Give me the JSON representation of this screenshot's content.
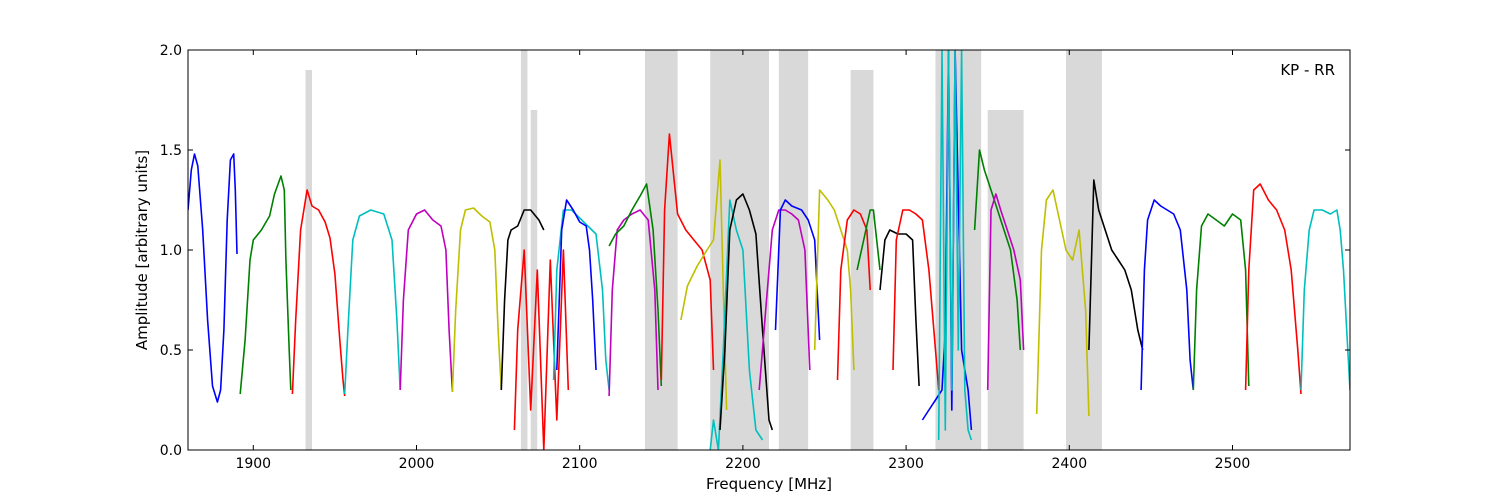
{
  "chart_data": {
    "type": "line",
    "annotation": "KP - RR",
    "xlabel": "Frequency [MHz]",
    "ylabel": "Amplitude [arbitrary units]",
    "xlim": [
      1860,
      2572
    ],
    "ylim": [
      0.0,
      2.0
    ],
    "xticks": [
      1900,
      2000,
      2100,
      2200,
      2300,
      2400,
      2500
    ],
    "yticks": [
      0.0,
      0.5,
      1.0,
      1.5,
      2.0
    ],
    "ytick_labels": [
      "0.0",
      "0.5",
      "1.0",
      "1.5",
      "2.0"
    ],
    "grid": false,
    "legend": "none",
    "background_series_color": "#c0c0c0",
    "series": [
      {
        "color": "#0000ff",
        "x": [
          1860,
          1862,
          1864,
          1866,
          1869,
          1872,
          1875,
          1878,
          1880,
          1882,
          1884,
          1886,
          1888,
          1889,
          1890
        ],
        "y": [
          1.2,
          1.4,
          1.48,
          1.42,
          1.1,
          0.65,
          0.32,
          0.24,
          0.3,
          0.6,
          1.15,
          1.45,
          1.48,
          1.3,
          0.98
        ]
      },
      {
        "color": "#008000",
        "x": [
          1892,
          1895,
          1898,
          1900,
          1905,
          1910,
          1913,
          1917,
          1919,
          1920,
          1922,
          1923
        ],
        "y": [
          0.28,
          0.55,
          0.95,
          1.05,
          1.1,
          1.17,
          1.28,
          1.37,
          1.3,
          0.95,
          0.5,
          0.3
        ]
      },
      {
        "color": "#ff0000",
        "x": [
          1924,
          1926,
          1929,
          1933,
          1936,
          1940,
          1944,
          1947,
          1950,
          1953,
          1955,
          1956
        ],
        "y": [
          0.28,
          0.65,
          1.1,
          1.3,
          1.22,
          1.2,
          1.14,
          1.06,
          0.88,
          0.55,
          0.35,
          0.27
        ]
      },
      {
        "color": "#00bfbf",
        "x": [
          1956,
          1958,
          1961,
          1965,
          1972,
          1980,
          1985,
          1988,
          1990
        ],
        "y": [
          0.28,
          0.6,
          1.05,
          1.17,
          1.2,
          1.18,
          1.05,
          0.65,
          0.3
        ]
      },
      {
        "color": "#bf00bf",
        "x": [
          1990,
          1992,
          1995,
          2000,
          2005,
          2010,
          2015,
          2018,
          2020,
          2022
        ],
        "y": [
          0.3,
          0.75,
          1.1,
          1.18,
          1.2,
          1.15,
          1.12,
          1.0,
          0.6,
          0.29
        ]
      },
      {
        "color": "#bfbf00",
        "x": [
          2022,
          2024,
          2027,
          2030,
          2035,
          2040,
          2045,
          2048,
          2050,
          2052
        ],
        "y": [
          0.29,
          0.7,
          1.1,
          1.2,
          1.21,
          1.17,
          1.14,
          1.0,
          0.6,
          0.3
        ]
      },
      {
        "color": "#000000",
        "x": [
          2052,
          2054,
          2056,
          2058,
          2062,
          2066,
          2070,
          2075,
          2078
        ],
        "y": [
          0.3,
          0.75,
          1.05,
          1.1,
          1.12,
          1.2,
          1.2,
          1.15,
          1.1
        ]
      },
      {
        "color": "#ff0000",
        "x": [
          2060,
          2062,
          2066,
          2070,
          2074,
          2078,
          2082,
          2086,
          2090,
          2093
        ],
        "y": [
          0.1,
          0.6,
          1.0,
          0.2,
          0.9,
          0.0,
          0.95,
          0.15,
          1.0,
          0.3
        ]
      },
      {
        "color": "#00bfbf",
        "x": [
          2084,
          2086,
          2090,
          2095,
          2100,
          2105,
          2110,
          2114,
          2116,
          2118
        ],
        "y": [
          0.35,
          0.9,
          1.2,
          1.2,
          1.16,
          1.12,
          1.08,
          0.8,
          0.45,
          0.3
        ]
      },
      {
        "color": "#0000ff",
        "x": [
          2086,
          2089,
          2092,
          2096,
          2100,
          2104,
          2106,
          2108,
          2110
        ],
        "y": [
          0.4,
          1.1,
          1.25,
          1.2,
          1.14,
          1.12,
          1.0,
          0.75,
          0.4
        ]
      },
      {
        "color": "#bf00bf",
        "x": [
          2118,
          2120,
          2123,
          2127,
          2132,
          2137,
          2142,
          2146,
          2148
        ],
        "y": [
          0.27,
          0.8,
          1.1,
          1.15,
          1.18,
          1.2,
          1.15,
          0.8,
          0.3
        ]
      },
      {
        "color": "#008000",
        "x": [
          2118,
          2122,
          2127,
          2132,
          2137,
          2141,
          2145,
          2148,
          2150
        ],
        "y": [
          1.02,
          1.08,
          1.12,
          1.2,
          1.27,
          1.33,
          1.1,
          0.7,
          0.32
        ]
      },
      {
        "color": "#ff0000",
        "x": [
          2150,
          2152,
          2155,
          2160,
          2165,
          2170,
          2175,
          2180,
          2182
        ],
        "y": [
          0.35,
          1.2,
          1.58,
          1.18,
          1.1,
          1.05,
          1.0,
          0.85,
          0.4
        ]
      },
      {
        "color": "#bfbf00",
        "x": [
          2162,
          2166,
          2172,
          2178,
          2182,
          2186,
          2188,
          2190
        ],
        "y": [
          0.65,
          0.82,
          0.92,
          1.0,
          1.05,
          1.45,
          0.8,
          0.2
        ]
      },
      {
        "color": "#00bfbf",
        "x": [
          2180,
          2182,
          2185,
          2188,
          2192,
          2196,
          2200,
          2204,
          2208,
          2212
        ],
        "y": [
          0.0,
          0.15,
          0.0,
          0.5,
          1.25,
          1.1,
          1.0,
          0.4,
          0.1,
          0.05
        ]
      },
      {
        "color": "#000000",
        "x": [
          2186,
          2189,
          2192,
          2196,
          2200,
          2204,
          2208,
          2212,
          2216,
          2218
        ],
        "y": [
          0.1,
          0.5,
          1.1,
          1.25,
          1.28,
          1.2,
          1.08,
          0.6,
          0.15,
          0.1
        ]
      },
      {
        "color": "#bf00bf",
        "x": [
          2210,
          2214,
          2218,
          2222,
          2226,
          2230,
          2234,
          2238,
          2241
        ],
        "y": [
          0.3,
          0.7,
          1.1,
          1.2,
          1.2,
          1.18,
          1.15,
          1.0,
          0.4
        ]
      },
      {
        "color": "#0000ff",
        "x": [
          2220,
          2223,
          2226,
          2230,
          2236,
          2240,
          2244,
          2247
        ],
        "y": [
          0.6,
          1.2,
          1.25,
          1.22,
          1.2,
          1.15,
          1.05,
          0.55
        ]
      },
      {
        "color": "#bfbf00",
        "x": [
          2244,
          2247,
          2252,
          2256,
          2260,
          2264,
          2266,
          2268
        ],
        "y": [
          0.5,
          1.3,
          1.25,
          1.2,
          1.1,
          1.0,
          0.8,
          0.4
        ]
      },
      {
        "color": "#ff0000",
        "x": [
          2258,
          2260,
          2264,
          2268,
          2272,
          2276,
          2278
        ],
        "y": [
          0.35,
          0.9,
          1.15,
          1.2,
          1.18,
          1.1,
          0.8
        ]
      },
      {
        "color": "#008000",
        "x": [
          2270,
          2274,
          2278,
          2280,
          2282,
          2284
        ],
        "y": [
          0.9,
          1.05,
          1.2,
          1.2,
          1.05,
          0.9
        ]
      },
      {
        "color": "#000000",
        "x": [
          2284,
          2287,
          2290,
          2295,
          2300,
          2304,
          2306,
          2308
        ],
        "y": [
          0.8,
          1.05,
          1.1,
          1.08,
          1.08,
          1.05,
          0.65,
          0.32
        ]
      },
      {
        "color": "#ff0000",
        "x": [
          2292,
          2294,
          2298,
          2302,
          2306,
          2310,
          2314,
          2318,
          2320
        ],
        "y": [
          0.4,
          1.05,
          1.2,
          1.2,
          1.18,
          1.15,
          0.9,
          0.5,
          0.3
        ]
      },
      {
        "color": "#0000ff",
        "x": [
          2310,
          2314,
          2318,
          2322,
          2324,
          2326,
          2328,
          2330,
          2334,
          2338,
          2340
        ],
        "y": [
          0.15,
          0.2,
          0.25,
          0.3,
          0.6,
          2.0,
          0.2,
          2.0,
          0.5,
          0.3,
          0.1
        ]
      },
      {
        "color": "#00bfbf",
        "x": [
          2320,
          2322,
          2324,
          2326,
          2328,
          2330,
          2332,
          2334,
          2336,
          2338,
          2340
        ],
        "y": [
          0.05,
          2.0,
          0.1,
          2.0,
          0.3,
          2.0,
          0.5,
          2.0,
          0.3,
          0.1,
          0.05
        ]
      },
      {
        "color": "#008000",
        "x": [
          2342,
          2345,
          2348,
          2352,
          2356,
          2360,
          2364,
          2368,
          2370
        ],
        "y": [
          1.1,
          1.5,
          1.4,
          1.3,
          1.2,
          1.1,
          1.0,
          0.75,
          0.5
        ]
      },
      {
        "color": "#bf00bf",
        "x": [
          2350,
          2352,
          2355,
          2358,
          2362,
          2366,
          2370,
          2372
        ],
        "y": [
          0.3,
          1.2,
          1.28,
          1.2,
          1.1,
          1.0,
          0.85,
          0.5
        ]
      },
      {
        "color": "#bfbf00",
        "x": [
          2380,
          2383,
          2386,
          2390,
          2394,
          2398,
          2402,
          2406,
          2410,
          2412
        ],
        "y": [
          0.18,
          1.0,
          1.25,
          1.3,
          1.15,
          1.0,
          0.95,
          1.1,
          0.7,
          0.17
        ]
      },
      {
        "color": "#000000",
        "x": [
          2412,
          2415,
          2418,
          2422,
          2426,
          2430,
          2434,
          2438,
          2442,
          2445
        ],
        "y": [
          0.5,
          1.35,
          1.2,
          1.1,
          1.0,
          0.95,
          0.9,
          0.8,
          0.6,
          0.5
        ]
      },
      {
        "color": "#0000ff",
        "x": [
          2444,
          2446,
          2448,
          2452,
          2456,
          2460,
          2464,
          2468,
          2472,
          2474,
          2476
        ],
        "y": [
          0.3,
          0.9,
          1.15,
          1.25,
          1.22,
          1.2,
          1.18,
          1.1,
          0.8,
          0.45,
          0.3
        ]
      },
      {
        "color": "#008000",
        "x": [
          2476,
          2478,
          2481,
          2485,
          2490,
          2495,
          2500,
          2505,
          2508,
          2510
        ],
        "y": [
          0.3,
          0.8,
          1.12,
          1.18,
          1.15,
          1.12,
          1.18,
          1.15,
          0.9,
          0.32
        ]
      },
      {
        "color": "#ff0000",
        "x": [
          2508,
          2510,
          2513,
          2517,
          2522,
          2527,
          2532,
          2536,
          2540,
          2542
        ],
        "y": [
          0.3,
          0.9,
          1.3,
          1.33,
          1.25,
          1.2,
          1.1,
          0.9,
          0.5,
          0.28
        ]
      },
      {
        "color": "#00bfbf",
        "x": [
          2542,
          2544,
          2547,
          2550,
          2555,
          2560,
          2564,
          2566,
          2568,
          2570,
          2572
        ],
        "y": [
          0.3,
          0.8,
          1.1,
          1.2,
          1.2,
          1.18,
          1.2,
          1.1,
          0.9,
          0.6,
          0.3
        ]
      }
    ],
    "background_spans": [
      {
        "x": [
          1932,
          1936
        ],
        "y_top": 1.9
      },
      {
        "x": [
          2064,
          2068
        ],
        "y_top": 2.0
      },
      {
        "x": [
          2070,
          2074
        ],
        "y_top": 1.7
      },
      {
        "x": [
          2140,
          2160
        ],
        "y_top": 2.0
      },
      {
        "x": [
          2180,
          2216
        ],
        "y_top": 2.0
      },
      {
        "x": [
          2222,
          2240
        ],
        "y_top": 2.0
      },
      {
        "x": [
          2266,
          2280
        ],
        "y_top": 1.9
      },
      {
        "x": [
          2318,
          2346
        ],
        "y_top": 2.0
      },
      {
        "x": [
          2350,
          2372
        ],
        "y_top": 1.7
      },
      {
        "x": [
          2398,
          2420
        ],
        "y_top": 2.0
      }
    ]
  }
}
